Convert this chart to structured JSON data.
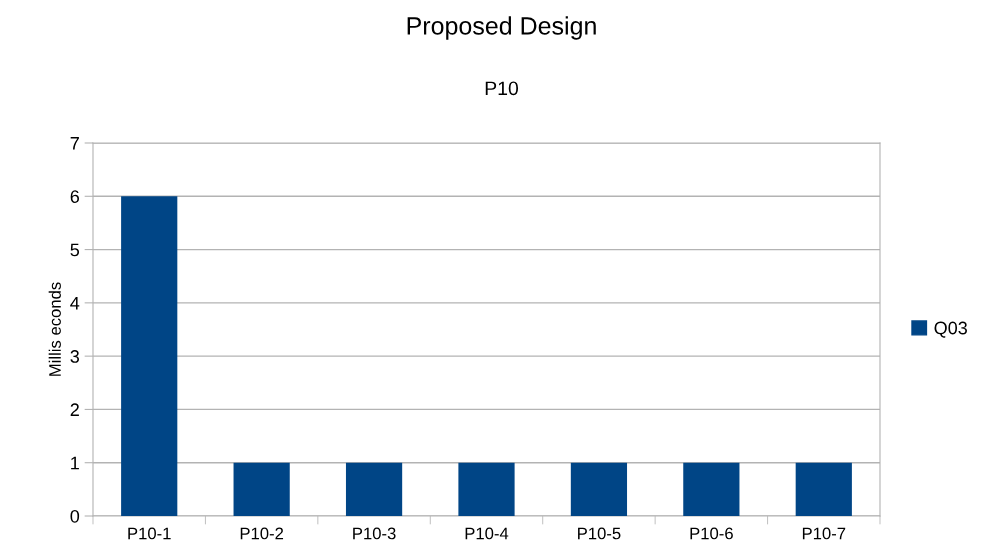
{
  "chart_data": {
    "type": "bar",
    "title": "Proposed Design",
    "subtitle": "P10",
    "ylabel": "Millis econds",
    "categories": [
      "P10-1",
      "P10-2",
      "P10-3",
      "P10-4",
      "P10-5",
      "P10-6",
      "P10-7"
    ],
    "series": [
      {
        "name": "Q03",
        "color": "#004586",
        "values": [
          6,
          1,
          1,
          1,
          1,
          1,
          1
        ]
      }
    ],
    "ylim": [
      0,
      7
    ],
    "yticks": [
      0,
      1,
      2,
      3,
      4,
      5,
      6,
      7
    ],
    "grid": "y",
    "legend": "right"
  }
}
